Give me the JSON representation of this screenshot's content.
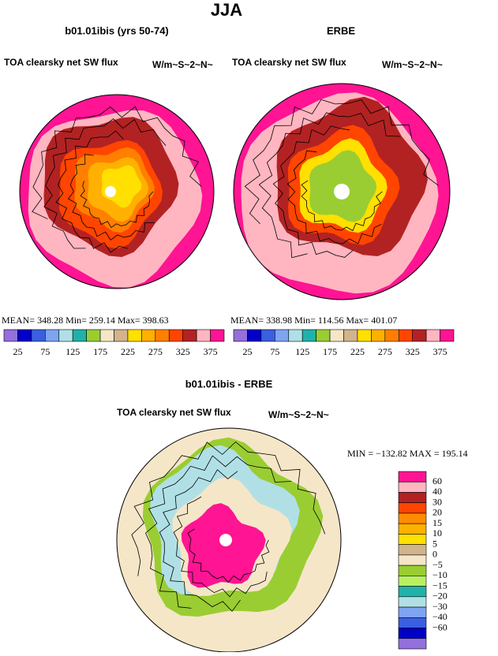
{
  "header": {
    "title": "JJA"
  },
  "panels": [
    {
      "title": "b01.01ibis (yrs 50-74)",
      "left_label": "TOA clearsky net SW flux",
      "right_label": "W/m~S~2~N~",
      "stats": "MEAN= 348.28   Min= 259.14   Max= 398.63",
      "colorbar": {
        "colors": [
          "#9370db",
          "#0000c8",
          "#3a5fe0",
          "#7fa4f0",
          "#b0e0e6",
          "#20b2aa",
          "#9acd32",
          "#f5e6c8",
          "#d2b48c",
          "#ffe000",
          "#ffb000",
          "#ff8000",
          "#ff4500",
          "#b22222",
          "#ffb6c1",
          "#ff1493"
        ],
        "labels": [
          "25",
          "75",
          "125",
          "175",
          "225",
          "275",
          "325",
          "375"
        ]
      }
    },
    {
      "title": "ERBE",
      "left_label": "TOA clearsky net SW flux",
      "right_label": "W/m~S~2~N~",
      "stats": "MEAN= 338.98   Min= 114.56   Max= 401.07",
      "colorbar": {
        "colors": [
          "#9370db",
          "#0000c8",
          "#3a5fe0",
          "#7fa4f0",
          "#b0e0e6",
          "#20b2aa",
          "#9acd32",
          "#f5e6c8",
          "#d2b48c",
          "#ffe000",
          "#ffb000",
          "#ff8000",
          "#ff4500",
          "#b22222",
          "#ffb6c1",
          "#ff1493"
        ],
        "labels": [
          "25",
          "75",
          "125",
          "175",
          "225",
          "275",
          "325",
          "375"
        ]
      }
    }
  ],
  "diff": {
    "title": "b01.01ibis - ERBE",
    "left_label": "TOA clearsky net SW flux",
    "right_label": "W/m~S~2~N~",
    "stats": "MIN = −132.82 MAX = 195.14",
    "colorbar": {
      "colors": [
        "#ff1493",
        "#ffb6c1",
        "#b22222",
        "#ff4500",
        "#ff8c00",
        "#ffb000",
        "#ffe000",
        "#d2b48c",
        "#f5e6c8",
        "#9acd32",
        "#b8f060",
        "#20b2aa",
        "#b0e0e6",
        "#7fa4f0",
        "#3a5fe0",
        "#0000c8",
        "#9370db"
      ],
      "labels": [
        "60",
        "40",
        "30",
        "20",
        "15",
        "10",
        "5",
        "0",
        "−5",
        "−10",
        "−15",
        "−20",
        "−30",
        "−40",
        "−60"
      ]
    }
  }
}
